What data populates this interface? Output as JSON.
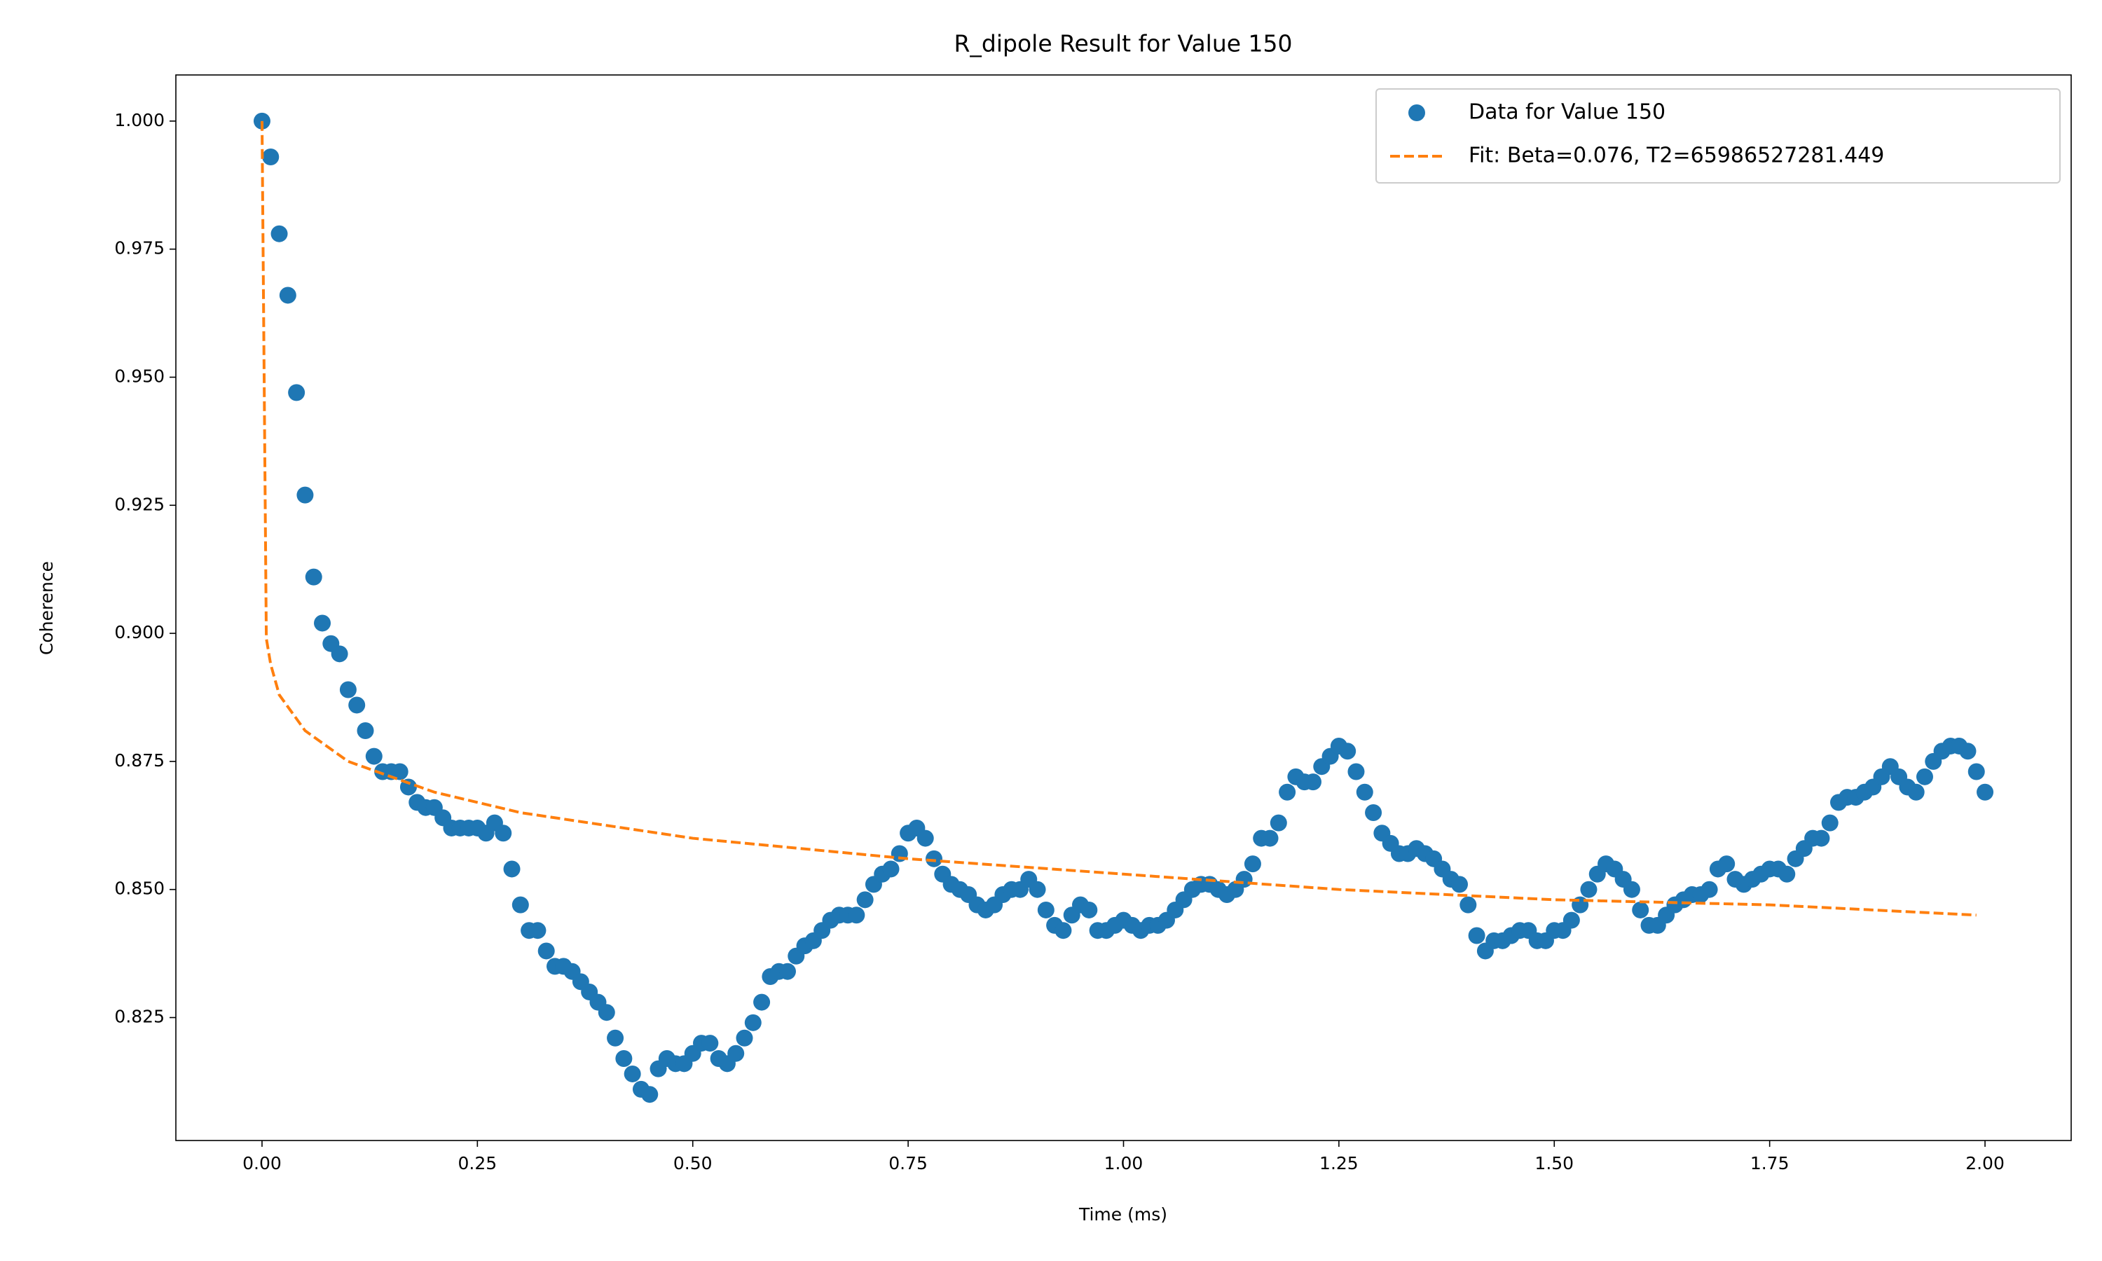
{
  "chart_data": {
    "type": "scatter",
    "title": "R_dipole Result for Value 150",
    "x_label": "Time (ms)",
    "y_label": "Coherence",
    "xlim": [
      -0.1,
      2.1
    ],
    "ylim": [
      0.801,
      1.009
    ],
    "xticks": [
      {
        "value": 0,
        "label": "0.00"
      },
      {
        "value": 0.25,
        "label": "0.25"
      },
      {
        "value": 0.5,
        "label": "0.50"
      },
      {
        "value": 0.75,
        "label": "0.75"
      },
      {
        "value": 1,
        "label": "1.00"
      },
      {
        "value": 1.25,
        "label": "1.25"
      },
      {
        "value": 1.5,
        "label": "1.50"
      },
      {
        "value": 1.75,
        "label": "1.75"
      },
      {
        "value": 2,
        "label": "2.00"
      }
    ],
    "yticks": [
      {
        "value": 0.825,
        "label": "0.825"
      },
      {
        "value": 0.85,
        "label": "0.850"
      },
      {
        "value": 0.875,
        "label": "0.875"
      },
      {
        "value": 0.9,
        "label": "0.900"
      },
      {
        "value": 0.925,
        "label": "0.925"
      },
      {
        "value": 0.95,
        "label": "0.950"
      },
      {
        "value": 0.975,
        "label": "0.975"
      },
      {
        "value": 1,
        "label": "1.000"
      }
    ],
    "grid": false,
    "legend": "upper right",
    "series": [
      {
        "name": "Data for Value 150",
        "color": "#1f77b4",
        "style": "markers",
        "x": [
          0,
          0.01,
          0.02,
          0.03,
          0.04,
          0.05,
          0.06,
          0.07,
          0.08,
          0.09,
          0.1,
          0.11,
          0.12,
          0.13,
          0.14,
          0.15,
          0.16,
          0.17,
          0.18,
          0.19,
          0.2,
          0.21,
          0.22,
          0.23,
          0.24,
          0.25,
          0.26,
          0.27,
          0.28,
          0.29,
          0.3,
          0.31,
          0.32,
          0.33,
          0.34,
          0.35,
          0.36,
          0.37,
          0.38,
          0.39,
          0.4,
          0.41,
          0.42,
          0.43,
          0.44,
          0.45,
          0.46,
          0.47,
          0.48,
          0.49,
          0.5,
          0.51,
          0.52,
          0.53,
          0.54,
          0.55,
          0.56,
          0.57,
          0.58,
          0.59,
          0.6,
          0.61,
          0.62,
          0.63,
          0.64,
          0.65,
          0.66,
          0.67,
          0.68,
          0.69,
          0.7,
          0.71,
          0.72,
          0.73,
          0.74,
          0.75,
          0.76,
          0.77,
          0.78,
          0.79,
          0.8,
          0.81,
          0.82,
          0.83,
          0.84,
          0.85,
          0.86,
          0.87,
          0.88,
          0.89,
          0.9,
          0.91,
          0.92,
          0.93,
          0.94,
          0.95,
          0.96,
          0.97,
          0.98,
          0.99,
          1,
          1.01,
          1.02,
          1.03,
          1.04,
          1.05,
          1.06,
          1.07,
          1.08,
          1.09,
          1.1,
          1.11,
          1.12,
          1.13,
          1.14,
          1.15,
          1.16,
          1.17,
          1.18,
          1.19,
          1.2,
          1.21,
          1.22,
          1.23,
          1.24,
          1.25,
          1.26,
          1.27,
          1.28,
          1.29,
          1.3,
          1.31,
          1.32,
          1.33,
          1.34,
          1.35,
          1.36,
          1.37,
          1.38,
          1.39,
          1.4,
          1.41,
          1.42,
          1.43,
          1.44,
          1.45,
          1.46,
          1.47,
          1.48,
          1.49,
          1.5,
          1.51,
          1.52,
          1.53,
          1.54,
          1.55,
          1.56,
          1.57,
          1.58,
          1.59,
          1.6,
          1.61,
          1.62,
          1.63,
          1.64,
          1.65,
          1.66,
          1.67,
          1.68,
          1.69,
          1.7,
          1.71,
          1.72,
          1.73,
          1.74,
          1.75,
          1.76,
          1.77,
          1.78,
          1.79,
          1.8,
          1.81,
          1.82,
          1.83,
          1.84,
          1.85,
          1.86,
          1.87,
          1.88,
          1.89,
          1.9,
          1.91,
          1.92,
          1.93,
          1.94,
          1.95,
          1.96,
          1.97,
          1.98,
          1.99,
          2
        ],
        "values": [
          1.0,
          0.993,
          0.978,
          0.966,
          0.947,
          0.927,
          0.911,
          0.902,
          0.898,
          0.896,
          0.889,
          0.886,
          0.881,
          0.876,
          0.873,
          0.873,
          0.873,
          0.87,
          0.867,
          0.866,
          0.866,
          0.864,
          0.862,
          0.862,
          0.862,
          0.862,
          0.861,
          0.863,
          0.861,
          0.854,
          0.847,
          0.842,
          0.842,
          0.838,
          0.835,
          0.835,
          0.834,
          0.832,
          0.83,
          0.828,
          0.826,
          0.821,
          0.817,
          0.814,
          0.811,
          0.81,
          0.815,
          0.817,
          0.816,
          0.816,
          0.818,
          0.82,
          0.82,
          0.817,
          0.816,
          0.818,
          0.821,
          0.824,
          0.828,
          0.833,
          0.834,
          0.834,
          0.837,
          0.839,
          0.84,
          0.842,
          0.844,
          0.845,
          0.845,
          0.845,
          0.848,
          0.851,
          0.853,
          0.854,
          0.857,
          0.861,
          0.862,
          0.86,
          0.856,
          0.853,
          0.851,
          0.85,
          0.849,
          0.847,
          0.846,
          0.847,
          0.849,
          0.85,
          0.85,
          0.852,
          0.85,
          0.846,
          0.843,
          0.842,
          0.845,
          0.847,
          0.846,
          0.842,
          0.842,
          0.843,
          0.844,
          0.843,
          0.842,
          0.843,
          0.843,
          0.844,
          0.846,
          0.848,
          0.85,
          0.851,
          0.851,
          0.85,
          0.849,
          0.85,
          0.852,
          0.855,
          0.86,
          0.86,
          0.863,
          0.869,
          0.872,
          0.871,
          0.871,
          0.874,
          0.876,
          0.878,
          0.877,
          0.873,
          0.869,
          0.865,
          0.861,
          0.859,
          0.857,
          0.857,
          0.858,
          0.857,
          0.856,
          0.854,
          0.852,
          0.851,
          0.847,
          0.841,
          0.838,
          0.84,
          0.84,
          0.841,
          0.842,
          0.842,
          0.84,
          0.84,
          0.842,
          0.842,
          0.844,
          0.847,
          0.85,
          0.853,
          0.855,
          0.854,
          0.852,
          0.85,
          0.846,
          0.843,
          0.843,
          0.845,
          0.847,
          0.848,
          0.849,
          0.849,
          0.85,
          0.854,
          0.855,
          0.852,
          0.851,
          0.852,
          0.853,
          0.854,
          0.854,
          0.853,
          0.856,
          0.858,
          0.86,
          0.86,
          0.863,
          0.867,
          0.868,
          0.868,
          0.869,
          0.87,
          0.872,
          0.874,
          0.872,
          0.87,
          0.869,
          0.872,
          0.875,
          0.877,
          0.878,
          0.878,
          0.877,
          0.873,
          0.869
        ]
      },
      {
        "name": "Fit: Beta=0.076, T2=65986527281.449",
        "color": "#ff7f0e",
        "style": "dashed-line",
        "x": [
          0,
          0.005,
          0.01,
          0.02,
          0.05,
          0.1,
          0.2,
          0.3,
          0.5,
          0.75,
          1,
          1.25,
          1.5,
          1.75,
          1.99
        ],
        "values": [
          1.0,
          0.899,
          0.894,
          0.888,
          0.881,
          0.875,
          0.869,
          0.865,
          0.86,
          0.856,
          0.853,
          0.85,
          0.848,
          0.847,
          0.845
        ]
      }
    ]
  }
}
